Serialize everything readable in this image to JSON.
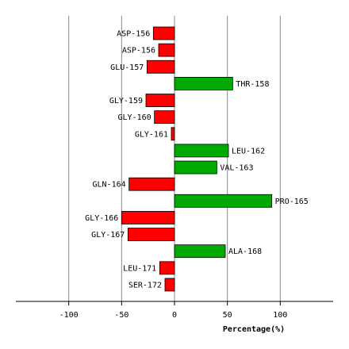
{
  "chart_data": {
    "type": "bar",
    "orientation": "horizontal",
    "categories": [
      "ASP-156",
      "ASP-156",
      "GLU-157",
      "THR-158",
      "GLY-159",
      "GLY-160",
      "GLY-161",
      "LEU-162",
      "VAL-163",
      "GLN-164",
      "PRO-165",
      "GLY-166",
      "GLY-167",
      "ALA-168",
      "LEU-171",
      "SER-172"
    ],
    "values": [
      -20,
      -15,
      -26,
      55,
      -27,
      -19,
      -3,
      51,
      40,
      -43,
      92,
      -50,
      -44,
      48,
      -14,
      -9
    ],
    "xlabel": "Percentage(%)",
    "xlim": [
      -150,
      150
    ],
    "xticks": [
      "-100",
      "-50",
      "0",
      "50",
      "100"
    ],
    "xtick_values": [
      -100,
      -50,
      0,
      50,
      100
    ],
    "grid": "vertical",
    "colors": {
      "positive": "#00aa00",
      "negative": "#ff0000",
      "outline": "#000000",
      "grid": "#888888"
    }
  }
}
